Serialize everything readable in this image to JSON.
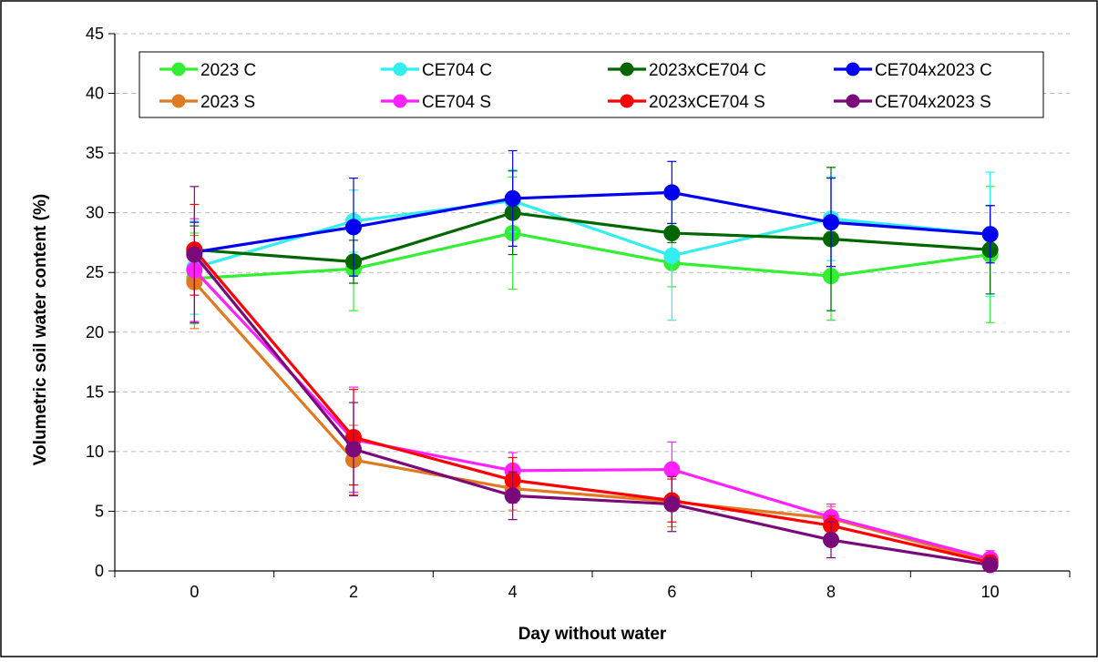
{
  "chart_data": {
    "type": "line",
    "title": "",
    "xlabel": "Day without water",
    "ylabel": "Volumetric soil water content (%)",
    "x": [
      0,
      2,
      4,
      6,
      8,
      10
    ],
    "x_ticks": [
      "0",
      "2",
      "4",
      "6",
      "8",
      "10"
    ],
    "xlim": [
      -1,
      11
    ],
    "ylim": [
      0,
      45
    ],
    "y_ticks": [
      "0",
      "5",
      "10",
      "15",
      "20",
      "25",
      "30",
      "35",
      "40",
      "45"
    ],
    "grid": "horizontal-dashed",
    "legend_position": "top",
    "error_bars": true,
    "series": [
      {
        "name": "2023 C",
        "color": "#33ee33",
        "values": [
          24.5,
          25.3,
          28.3,
          25.8,
          24.7,
          26.5
        ],
        "errors": [
          3.8,
          3.5,
          4.7,
          2.0,
          3.7,
          5.7
        ]
      },
      {
        "name": "CE704 C",
        "color": "#33eeee",
        "values": [
          25.4,
          29.3,
          31.0,
          26.4,
          29.5,
          28.2
        ],
        "errors": [
          3.9,
          2.6,
          2.6,
          5.4,
          3.5,
          5.2
        ]
      },
      {
        "name": "2023xCE704 C",
        "color": "#006600",
        "values": [
          26.9,
          25.9,
          30.0,
          28.3,
          27.8,
          26.9
        ],
        "errors": [
          2.0,
          1.8,
          3.5,
          0.8,
          6.0,
          3.7
        ]
      },
      {
        "name": "CE704x2023 C",
        "color": "#0000ee",
        "values": [
          26.7,
          28.8,
          31.2,
          31.7,
          29.2,
          28.2
        ],
        "errors": [
          2.5,
          4.1,
          4.0,
          2.6,
          3.7,
          2.4
        ]
      },
      {
        "name": "2023 S",
        "color": "#e07a22",
        "values": [
          24.2,
          9.3,
          6.9,
          5.8,
          4.4,
          0.8
        ],
        "errors": [
          3.9,
          2.9,
          1.8,
          2.1,
          1.0,
          0.5
        ]
      },
      {
        "name": "CE704 S",
        "color": "#ff22ff",
        "values": [
          25.2,
          11.0,
          8.4,
          8.5,
          4.5,
          1.0
        ],
        "errors": [
          4.3,
          4.4,
          1.5,
          2.3,
          1.1,
          0.7
        ]
      },
      {
        "name": "2023xCE704 S",
        "color": "#ff0000",
        "values": [
          26.9,
          11.2,
          7.6,
          5.9,
          3.8,
          0.7
        ],
        "errors": [
          3.8,
          4.0,
          1.9,
          1.8,
          0.8,
          0.6
        ]
      },
      {
        "name": "CE704x2023 S",
        "color": "#7a0a7a",
        "values": [
          26.5,
          10.2,
          6.3,
          5.6,
          2.6,
          0.5
        ],
        "errors": [
          5.7,
          3.9,
          2.0,
          2.3,
          1.5,
          0.4
        ]
      }
    ]
  }
}
